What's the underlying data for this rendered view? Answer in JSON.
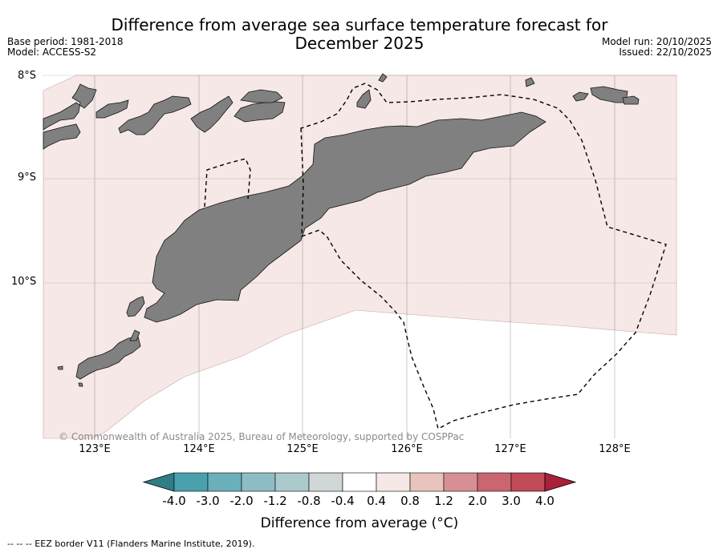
{
  "title_line1": "Difference from average sea surface temperature forecast for",
  "title_line2": "December 2025",
  "base_period": "Base period: 1981-2018",
  "model": "Model: ACCESS-S2",
  "model_run": "Model run: 20/10/2025",
  "issued": "Issued: 22/10/2025",
  "copyright": "© Commonwealth of Australia 2025, Bureau of Meteorology, supported by COSPPac",
  "latitudes": [
    "8°S",
    "9°S",
    "10°S"
  ],
  "longitudes": [
    "123°E",
    "124°E",
    "125°E",
    "126°E",
    "127°E",
    "128°E"
  ],
  "colorbar": {
    "label": "Difference from average (°C)",
    "ticks": [
      "-4.0",
      "-3.0",
      "-2.0",
      "-1.2",
      "-0.8",
      "-0.4",
      "0.4",
      "0.8",
      "1.2",
      "2.0",
      "3.0",
      "4.0"
    ],
    "colors": [
      "#2f7d86",
      "#4aa1ad",
      "#6aafba",
      "#8ebcc5",
      "#acc9cc",
      "#d1d6d7",
      "#ffffff",
      "#f5e8e6",
      "#e8c4bc",
      "#d78f96",
      "#c9666f",
      "#c04a58",
      "#a8203a"
    ]
  },
  "map_colors": {
    "land": "#808080",
    "sst_anomaly_fill": "#f5e8e6",
    "ocean_neutral": "#ffffff"
  },
  "legend": "--  --  -- EEZ border V11 (Flanders Marine Institute, 2019)."
}
